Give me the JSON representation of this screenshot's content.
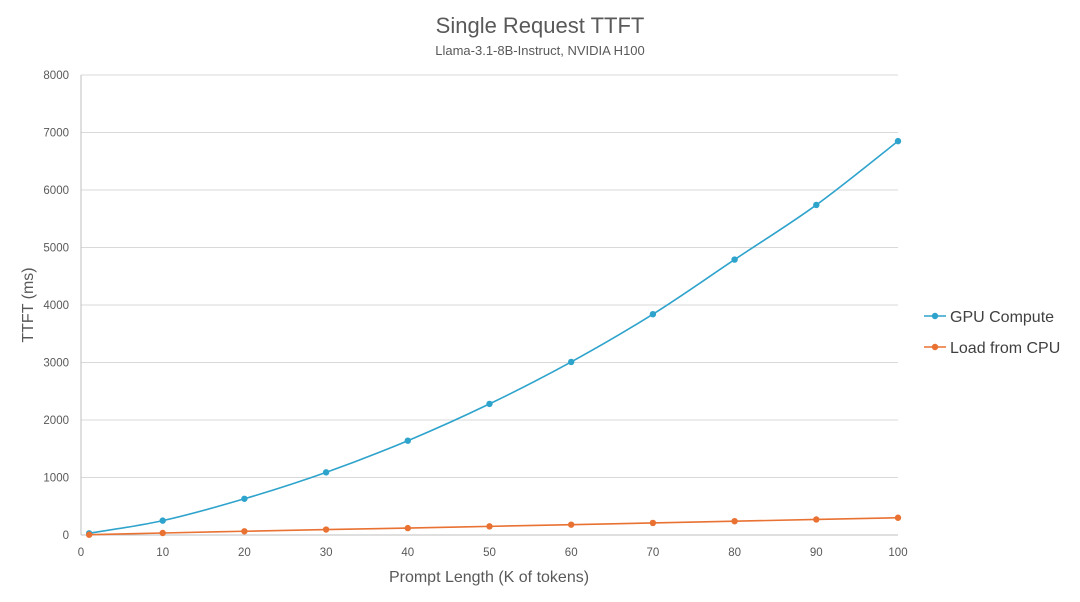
{
  "chart_data": {
    "type": "line",
    "title": "Single Request TTFT",
    "subtitle": "Llama-3.1-8B-Instruct, NVIDIA H100",
    "xlabel": "Prompt Length (K of tokens)",
    "ylabel": "TTFT (ms)",
    "xlim": [
      0,
      100
    ],
    "ylim": [
      0,
      8000
    ],
    "x_ticks": [
      0,
      10,
      20,
      30,
      40,
      50,
      60,
      70,
      80,
      90,
      100
    ],
    "y_ticks": [
      0,
      1000,
      2000,
      3000,
      4000,
      5000,
      6000,
      7000,
      8000
    ],
    "grid": true,
    "legend_position": "right",
    "x": [
      1,
      10,
      20,
      30,
      40,
      50,
      60,
      70,
      80,
      90,
      100
    ],
    "series": [
      {
        "name": "GPU Compute",
        "color": "#2ea3cc",
        "values": [
          30,
          250,
          630,
          1090,
          1640,
          2280,
          3010,
          3840,
          4790,
          5740,
          6850
        ]
      },
      {
        "name": "Load from CPU",
        "color": "#e97132",
        "values": [
          5,
          35,
          65,
          95,
          120,
          150,
          180,
          210,
          240,
          270,
          300
        ]
      }
    ]
  }
}
